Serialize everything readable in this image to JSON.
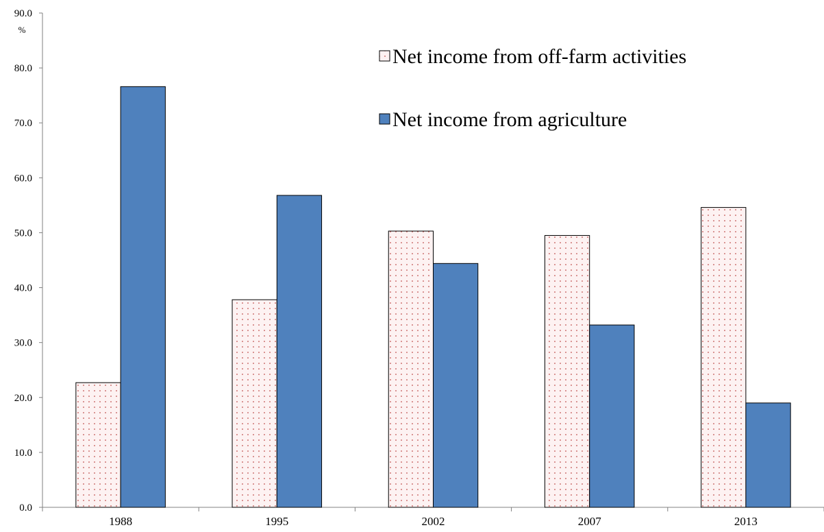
{
  "chart_data": {
    "type": "bar",
    "categories": [
      "1988",
      "1995",
      "2002",
      "2007",
      "2013"
    ],
    "series": [
      {
        "name": "Net income from off-farm activities",
        "values": [
          22.7,
          37.8,
          50.3,
          49.5,
          54.6
        ],
        "color": "#fdf2f2",
        "pattern": "dotted"
      },
      {
        "name": "Net income from agriculture",
        "values": [
          76.6,
          56.8,
          44.4,
          33.2,
          19.0
        ],
        "color": "#4f81bd",
        "pattern": "solid"
      }
    ],
    "ylim": [
      0,
      90
    ],
    "yticks": [
      "0.0",
      "10.0",
      "20.0",
      "30.0",
      "40.0",
      "50.0",
      "60.0",
      "70.0",
      "80.0",
      "90.0"
    ],
    "ylabel": "%",
    "xlabel": "",
    "title": "",
    "grid": false,
    "legend_position": "top-right"
  }
}
